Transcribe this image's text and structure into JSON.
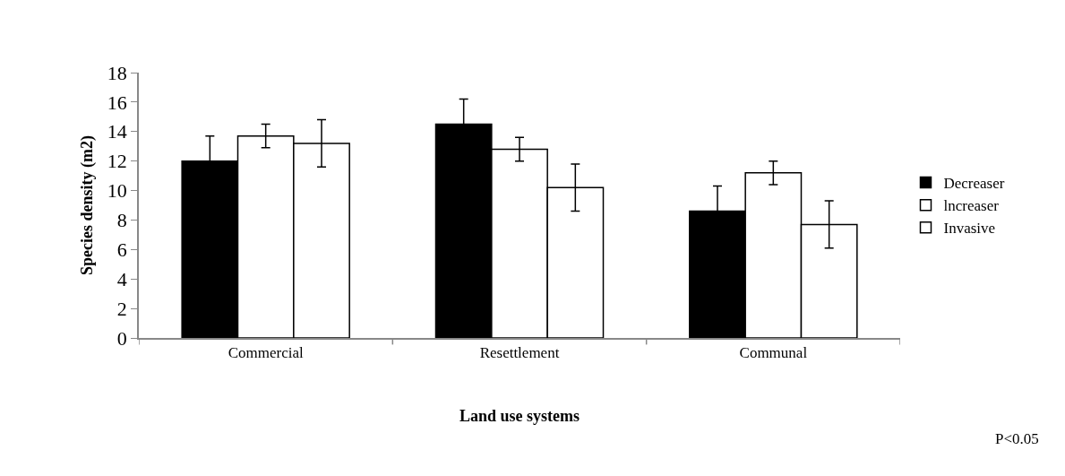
{
  "chart_data": {
    "type": "bar",
    "xlabel": "Land use systems",
    "ylabel": "Species density (m2)",
    "categories": [
      "Commercial",
      "Resettlement",
      "Communal"
    ],
    "series": [
      {
        "name": "Decreaser",
        "color": "#000000",
        "values": [
          12.0,
          14.5,
          8.6
        ],
        "errors": [
          1.7,
          1.7,
          1.7
        ]
      },
      {
        "name": "lncreaser",
        "color": "#ffffff",
        "values": [
          13.7,
          12.8,
          11.2
        ],
        "errors": [
          0.8,
          0.8,
          0.8
        ]
      },
      {
        "name": "Invasive",
        "color": "#ffffff",
        "values": [
          13.2,
          10.2,
          7.7
        ],
        "errors": [
          1.6,
          1.6,
          1.6
        ]
      }
    ],
    "ylim": [
      0,
      18
    ],
    "yticks": [
      0,
      2,
      4,
      6,
      8,
      10,
      12,
      14,
      16,
      18
    ],
    "legend": "right",
    "annotations": [
      "P<0.05"
    ]
  }
}
